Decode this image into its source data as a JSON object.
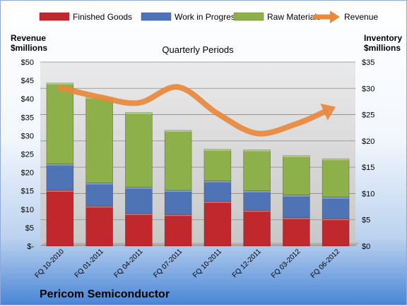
{
  "company": "Pericom Semiconductor",
  "chart_data": {
    "type": "bar",
    "title": "Quarterly Periods",
    "categories": [
      "FQ 10-2010",
      "FQ 01-2011",
      "FQ 04-2011",
      "FQ 07-2011",
      "FQ 10-2011",
      "FQ 12-2011",
      "FQ 03-2012",
      "FQ 06-2012"
    ],
    "left_axis": {
      "label_line1": "Revenue",
      "label_line2": "$millions",
      "ylim": [
        0,
        50
      ],
      "ticks": [
        "$-",
        "$5",
        "$10",
        "$15",
        "$20",
        "$25",
        "$30",
        "$35",
        "$40",
        "$45",
        "$50"
      ]
    },
    "right_axis": {
      "label_line1": "Inventory",
      "label_line2": "$millions",
      "ylim": [
        0,
        35
      ],
      "ticks": [
        "$0",
        "$5",
        "$10",
        "$15",
        "$20",
        "$25",
        "$30",
        "$35"
      ]
    },
    "grid": true,
    "legend_position": "top",
    "series": [
      {
        "name": "Finished Goods",
        "kind": "bar",
        "axis": "right",
        "color": "#c0282d",
        "values": [
          10.6,
          7.6,
          6.2,
          6.0,
          8.5,
          6.8,
          5.4,
          5.2
        ]
      },
      {
        "name": "Work in Progress",
        "kind": "bar",
        "axis": "right",
        "color": "#4f74b5",
        "values": [
          5.0,
          4.4,
          5.0,
          4.6,
          3.9,
          3.7,
          4.3,
          4.1
        ]
      },
      {
        "name": "Raw Materials",
        "kind": "bar",
        "axis": "right",
        "color": "#8db04a",
        "values": [
          15.4,
          16.3,
          14.2,
          11.4,
          6.0,
          7.8,
          7.5,
          7.3
        ]
      },
      {
        "name": "Revenue",
        "kind": "line",
        "axis": "left",
        "color": "#e8893c",
        "values": [
          43.0,
          40.5,
          38.9,
          43.2,
          36.0,
          30.6,
          33.2,
          37.8
        ]
      }
    ]
  }
}
